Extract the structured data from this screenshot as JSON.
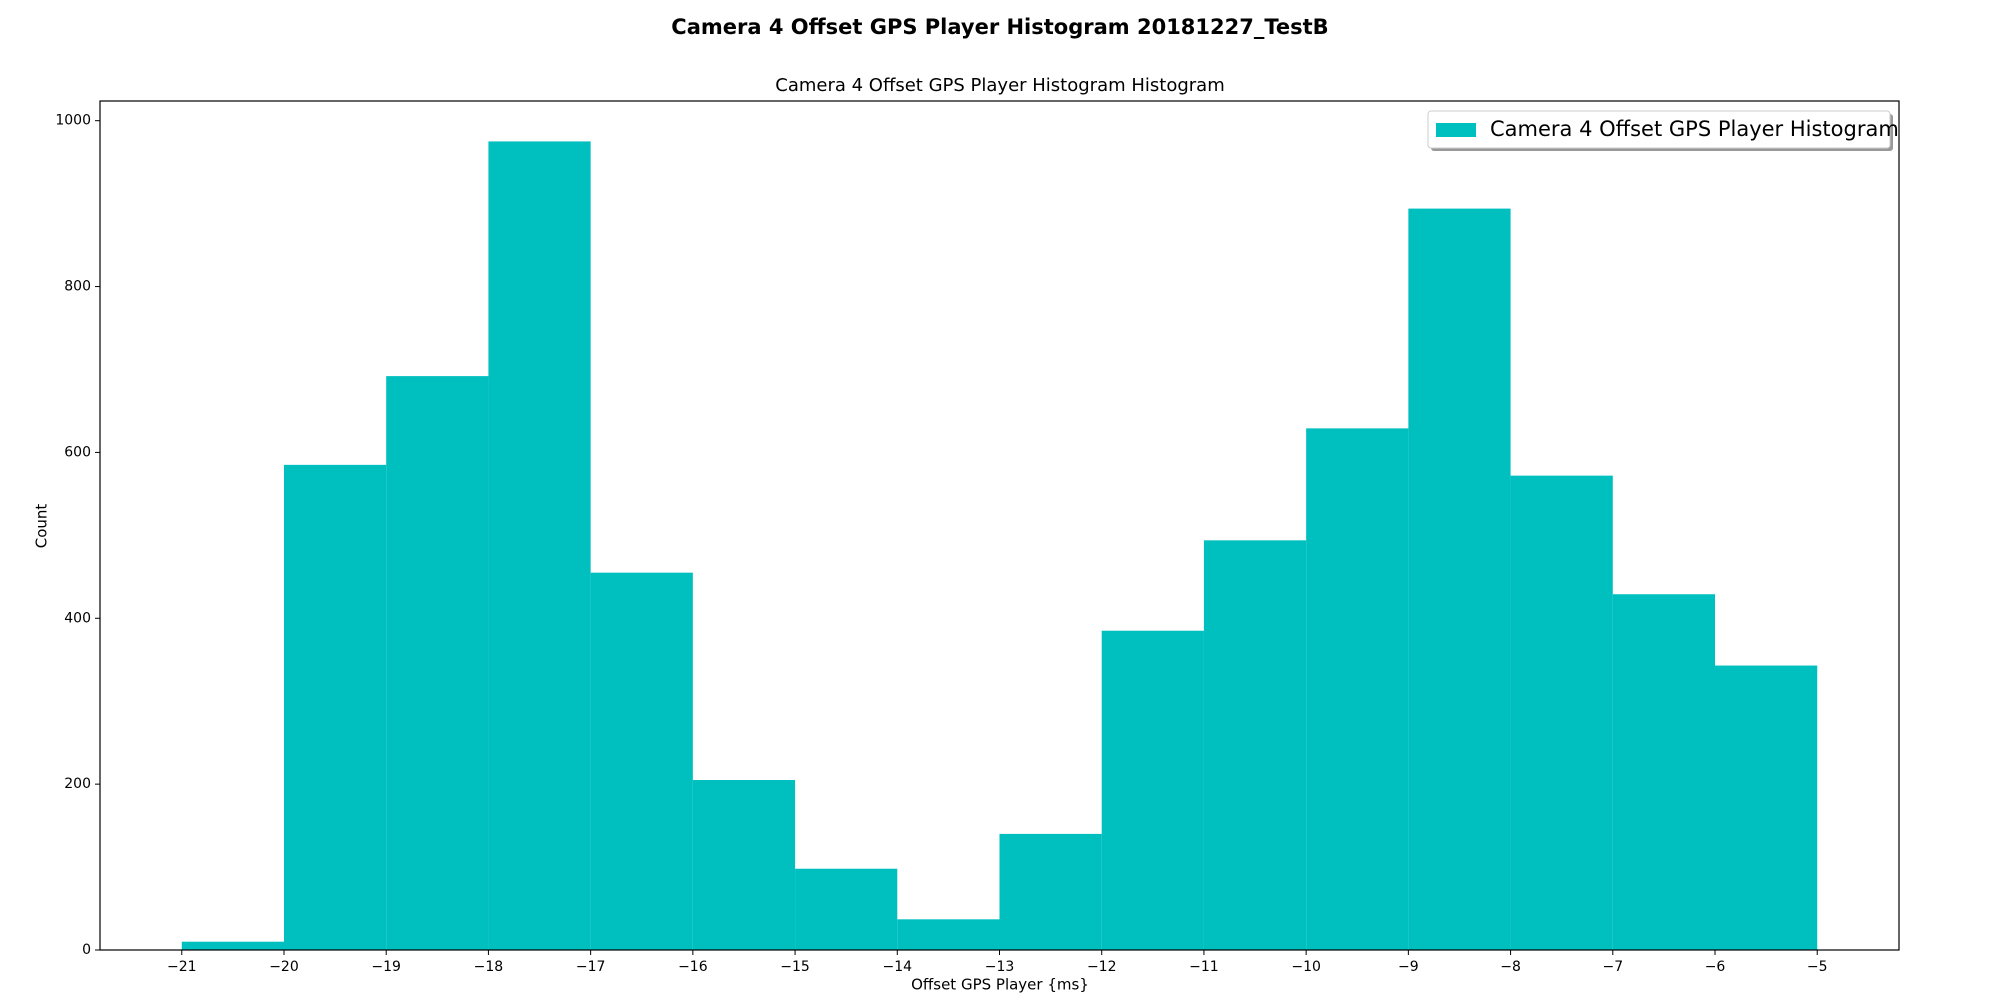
{
  "chart_data": {
    "type": "histogram",
    "title": "Camera 4 Offset GPS Player Histogram 20181227_TestB",
    "subtitle": "Camera 4 Offset GPS Player Histogram Histogram",
    "x_label": "Offset GPS Player {ms}",
    "y_label": "Count",
    "bins": [
      -21,
      -20,
      -19,
      -18,
      -17,
      -16,
      -15,
      -14,
      -13,
      -12,
      -11,
      -10,
      -9,
      -8,
      -7,
      -6,
      -5
    ],
    "series": [
      {
        "name": "Camera 4 Offset GPS Player Histogram",
        "color": "#00bfbf",
        "values": [
          10,
          585,
          692,
          975,
          455,
          205,
          98,
          37,
          140,
          385,
          494,
          629,
          894,
          572,
          429,
          343
        ]
      }
    ],
    "xlim": [
      -21.8,
      -4.2
    ],
    "ylim": [
      0,
      1023.75
    ],
    "xticks": [
      {
        "value": -21,
        "label": "−21"
      },
      {
        "value": -20,
        "label": "−20"
      },
      {
        "value": -19,
        "label": "−19"
      },
      {
        "value": -18,
        "label": "−18"
      },
      {
        "value": -17,
        "label": "−17"
      },
      {
        "value": -16,
        "label": "−16"
      },
      {
        "value": -15,
        "label": "−15"
      },
      {
        "value": -14,
        "label": "−14"
      },
      {
        "value": -13,
        "label": "−13"
      },
      {
        "value": -12,
        "label": "−12"
      },
      {
        "value": -11,
        "label": "−11"
      },
      {
        "value": -10,
        "label": "−10"
      },
      {
        "value": -9,
        "label": "−9"
      },
      {
        "value": -8,
        "label": "−8"
      },
      {
        "value": -7,
        "label": "−7"
      },
      {
        "value": -6,
        "label": "−6"
      },
      {
        "value": -5,
        "label": "−5"
      }
    ],
    "yticks": [
      0,
      200,
      400,
      600,
      800,
      1000
    ],
    "legend": "upper right",
    "grid": false
  }
}
